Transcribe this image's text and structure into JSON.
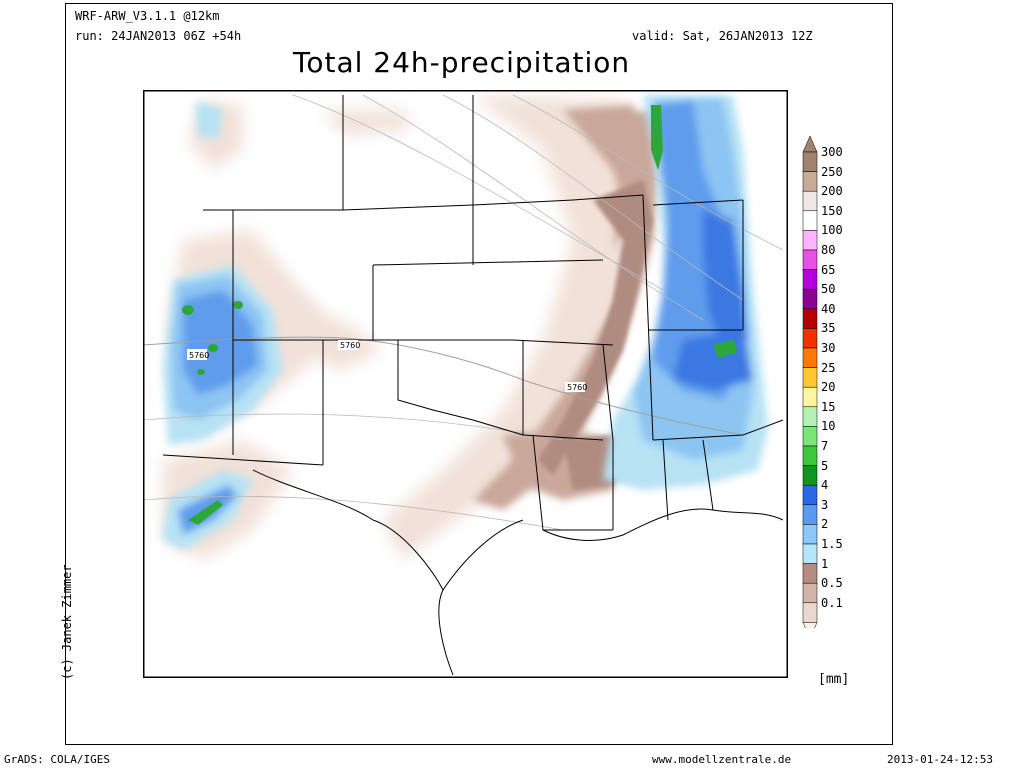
{
  "header": {
    "model": "WRF-ARW_V3.1.1 @12km",
    "run": "run: 24JAN2013 06Z +54h",
    "valid": "valid: Sat, 26JAN2013 12Z"
  },
  "title": "Total 24h-precipitation",
  "credit": "(c) Janek Zimmer",
  "footer": {
    "left": "GrADS: COLA/IGES",
    "center": "www.modellzentrale.de",
    "right": "2013-01-24-12:53"
  },
  "map": {
    "contour_label": "5760"
  },
  "legend": {
    "unit": "[mm]",
    "levels": [
      {
        "label": "300",
        "color": "#a0826e"
      },
      {
        "label": "250",
        "color": "#c8aa96"
      },
      {
        "label": "200",
        "color": "#f0e6e6"
      },
      {
        "label": "150",
        "color": "#ffffff"
      },
      {
        "label": "100",
        "color": "#ffb4ff"
      },
      {
        "label": "80",
        "color": "#e650e6"
      },
      {
        "label": "65",
        "color": "#b400dc"
      },
      {
        "label": "50",
        "color": "#8c0094"
      },
      {
        "label": "40",
        "color": "#b40000"
      },
      {
        "label": "35",
        "color": "#f03200"
      },
      {
        "label": "30",
        "color": "#ff7800"
      },
      {
        "label": "25",
        "color": "#ffc832"
      },
      {
        "label": "20",
        "color": "#fff5a0"
      },
      {
        "label": "15",
        "color": "#b4f0b4"
      },
      {
        "label": "10",
        "color": "#78e678"
      },
      {
        "label": "7",
        "color": "#3cc83c"
      },
      {
        "label": "5",
        "color": "#10961e"
      },
      {
        "label": "4",
        "color": "#2a6ae6"
      },
      {
        "label": "3",
        "color": "#5a9af0"
      },
      {
        "label": "2",
        "color": "#8cc8fa"
      },
      {
        "label": "1.5",
        "color": "#b4e6fa"
      },
      {
        "label": "1",
        "color": "#b48c80"
      },
      {
        "label": "0.5",
        "color": "#d2b4a8"
      },
      {
        "label": "0.1",
        "color": "#ebd7cd"
      }
    ],
    "bottom_color": "#fbf0ea"
  }
}
